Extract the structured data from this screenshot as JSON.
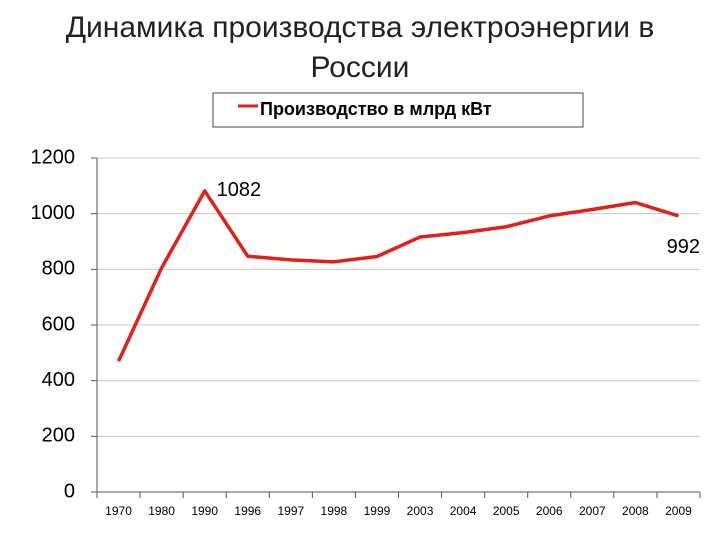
{
  "chart_data": {
    "type": "line",
    "title": "Динамика производства электроэнергии в России",
    "categories": [
      "1970",
      "1980",
      "1990",
      "1996",
      "1997",
      "1998",
      "1999",
      "2003",
      "2004",
      "2005",
      "2006",
      "2007",
      "2008",
      "2009"
    ],
    "series": [
      {
        "name": "Производство в млрд кВт",
        "color": "#e0201b",
        "values": [
          470,
          805,
          1082,
          847,
          834,
          827,
          846,
          916,
          932,
          953,
          992,
          1015,
          1040,
          992
        ]
      }
    ],
    "labeled_indices": [
      2,
      13
    ],
    "ylim": [
      0,
      1200
    ],
    "yticks": [
      0,
      200,
      400,
      600,
      800,
      1000,
      1200
    ],
    "grid": true
  }
}
